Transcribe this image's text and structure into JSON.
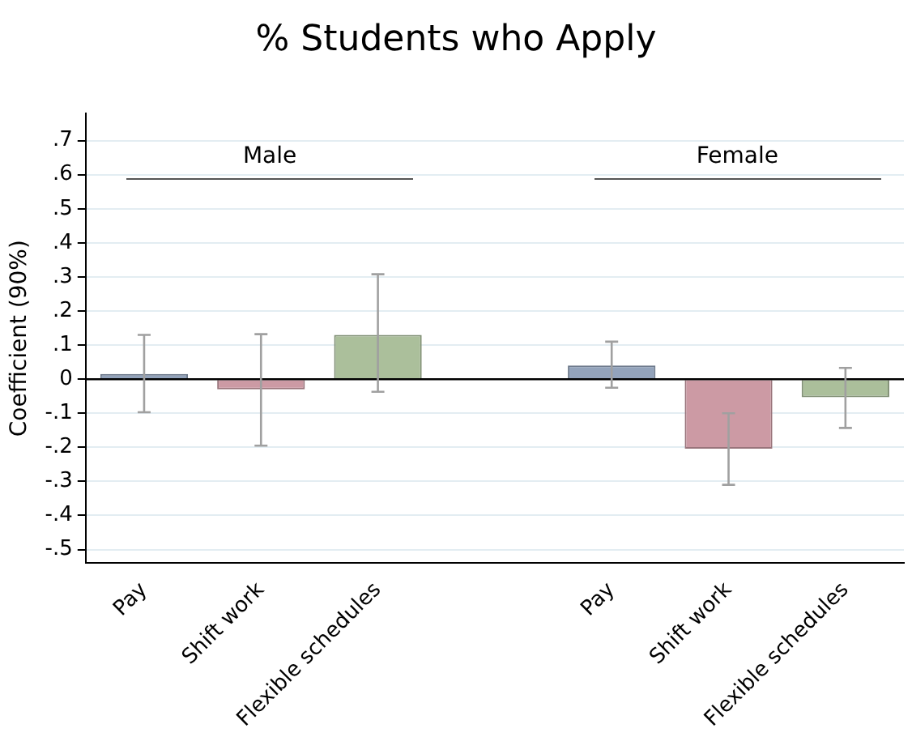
{
  "chart_data": {
    "type": "bar",
    "title": "% Students who Apply",
    "ylabel": "Coefficient (90%)",
    "categories": [
      "Pay",
      "Shift work",
      "Flexible schedules",
      null,
      "Pay",
      "Shift work",
      "Flexible schedules"
    ],
    "values": [
      0.015,
      -0.03,
      0.13,
      null,
      0.04,
      -0.204,
      -0.053
    ],
    "colors": [
      "#93a3bb",
      "#cc9aa4",
      "#abbf9b",
      null,
      "#93a3bb",
      "#cc9aa4",
      "#abbf9b"
    ],
    "errors": [
      [
        -0.097,
        0.13
      ],
      [
        -0.195,
        0.132
      ],
      [
        -0.037,
        0.308
      ],
      null,
      [
        -0.025,
        0.11
      ],
      [
        -0.31,
        -0.1
      ],
      [
        -0.143,
        0.033
      ]
    ],
    "ylim": [
      -0.54,
      0.78
    ],
    "yticks": [
      {
        "value": -0.5,
        "label": "-.5"
      },
      {
        "value": -0.4,
        "label": "-.4"
      },
      {
        "value": -0.3,
        "label": "-.3"
      },
      {
        "value": -0.2,
        "label": "-.2"
      },
      {
        "value": -0.1,
        "label": "-.1"
      },
      0,
      {
        "value": 0.1,
        "label": ".1"
      },
      {
        "value": 0.2,
        "label": ".2"
      },
      {
        "value": 0.3,
        "label": ".3"
      },
      {
        "value": 0.4,
        "label": ".4"
      },
      {
        "value": 0.5,
        "label": ".5"
      },
      {
        "value": 0.6,
        "label": ".6"
      },
      {
        "value": 0.7,
        "label": ".7"
      }
    ],
    "ref_lines": [
      {
        "axis": "y",
        "value": 0,
        "color": "#000000"
      }
    ],
    "annotations": [
      "Male",
      "Female"
    ],
    "grid": "y",
    "legend": false
  }
}
